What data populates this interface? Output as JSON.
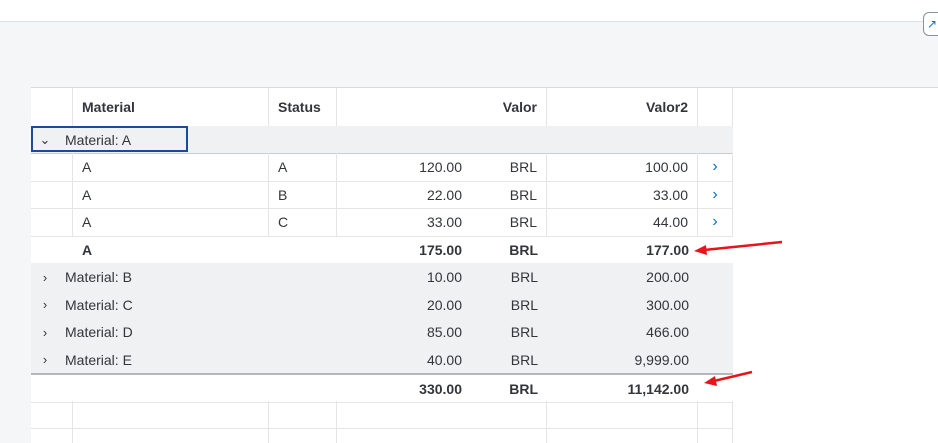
{
  "header": {
    "columns": {
      "material": "Material",
      "status": "Status",
      "valor": "Valor",
      "valor2": "Valor2"
    }
  },
  "group_a": {
    "label": "Material: A",
    "rows": [
      {
        "material": "A",
        "status": "A",
        "valor": "120.00",
        "currency": "BRL",
        "valor2": "100.00"
      },
      {
        "material": "A",
        "status": "B",
        "valor": "22.00",
        "currency": "BRL",
        "valor2": "33.00"
      },
      {
        "material": "A",
        "status": "C",
        "valor": "33.00",
        "currency": "BRL",
        "valor2": "44.00"
      }
    ],
    "subtotal": {
      "material": "A",
      "valor": "175.00",
      "currency": "BRL",
      "valor2": "177.00"
    }
  },
  "groups": [
    {
      "label": "Material: B",
      "valor": "10.00",
      "currency": "BRL",
      "valor2": "200.00"
    },
    {
      "label": "Material: C",
      "valor": "20.00",
      "currency": "BRL",
      "valor2": "300.00"
    },
    {
      "label": "Material: D",
      "valor": "85.00",
      "currency": "BRL",
      "valor2": "466.00"
    },
    {
      "label": "Material: E",
      "valor": "40.00",
      "currency": "BRL",
      "valor2": "9,999.00"
    }
  ],
  "total": {
    "valor": "330.00",
    "currency": "BRL",
    "valor2": "11,142.00"
  },
  "icons": {
    "expanded": "chevron-down-icon",
    "collapsed": "chevron-right-icon",
    "navigation": "chevron-right-icon",
    "annotation": "red-arrow-icon"
  },
  "colors": {
    "annotation": "#e8141b",
    "focus": "#1c4a94",
    "link": "#0a6ed1"
  }
}
